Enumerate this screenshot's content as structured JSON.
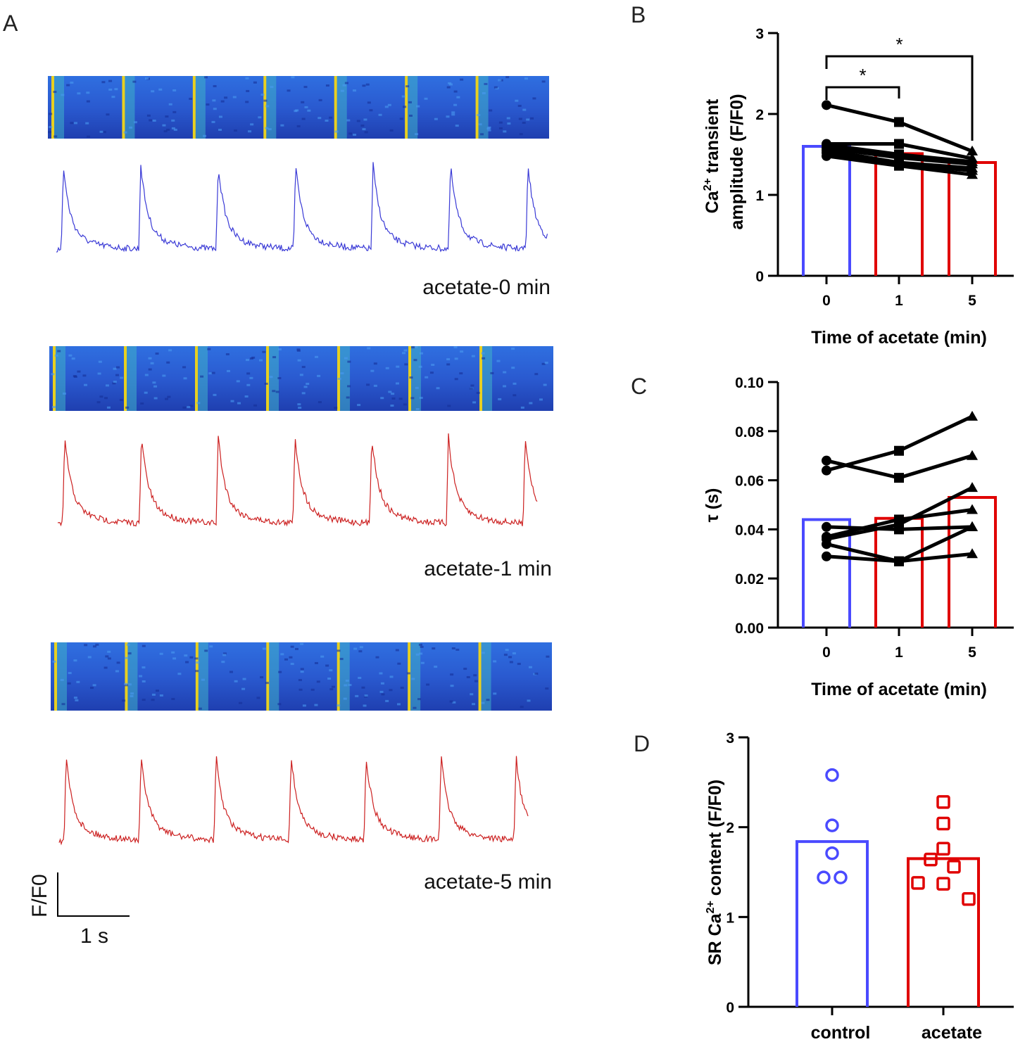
{
  "panel_labels": {
    "a": "A",
    "b": "B",
    "c": "C",
    "d": "D"
  },
  "panel_a": {
    "traces": [
      {
        "label": "acetate-0 min",
        "color": "#3a3ad6",
        "beats": 7
      },
      {
        "label": "acetate-1 min",
        "color": "#cc2020",
        "beats": 7
      },
      {
        "label": "acetate-5 min",
        "color": "#cc2020",
        "beats": 7
      }
    ],
    "scale_bar": {
      "y_label": "F/F0",
      "x_label": "1 s"
    }
  },
  "colors": {
    "control": "#4a4aff",
    "acetate": "#e00000",
    "points": "#000000"
  },
  "chart_data": [
    {
      "id": "B",
      "type": "bar",
      "ylabel_main": "Ca",
      "ylabel_sup": "2+",
      "ylabel_rest": " transient",
      "ylabel_line2": "amplitude (F/F0)",
      "xlabel": "Time of acetate (min)",
      "categories": [
        "0",
        "1",
        "5"
      ],
      "values": [
        1.6,
        1.51,
        1.4
      ],
      "ylim": [
        0,
        3
      ],
      "yticks": [
        "0",
        "1",
        "2",
        "3"
      ],
      "paired_series": [
        [
          2.11,
          1.9,
          1.54
        ],
        [
          1.63,
          1.63,
          1.45
        ],
        [
          1.62,
          1.5,
          1.41
        ],
        [
          1.58,
          1.46,
          1.38
        ],
        [
          1.55,
          1.4,
          1.33
        ],
        [
          1.52,
          1.38,
          1.3
        ],
        [
          1.48,
          1.36,
          1.25
        ]
      ],
      "significance": [
        {
          "from": "0",
          "to": "1",
          "label": "*"
        },
        {
          "from": "0",
          "to": "5",
          "label": "*"
        }
      ]
    },
    {
      "id": "C",
      "type": "bar",
      "ylabel_main": "τ (s)",
      "xlabel": "Time of acetate (min)",
      "categories": [
        "0",
        "1",
        "5"
      ],
      "values": [
        0.044,
        0.0445,
        0.053
      ],
      "ylim": [
        0,
        0.1
      ],
      "yticks": [
        "0.00",
        "0.02",
        "0.04",
        "0.06",
        "0.08",
        "0.10"
      ],
      "paired_series": [
        [
          0.068,
          0.061,
          0.07
        ],
        [
          0.064,
          0.072,
          0.086
        ],
        [
          0.041,
          0.04,
          0.041
        ],
        [
          0.037,
          0.044,
          0.048
        ],
        [
          0.036,
          0.042,
          0.057
        ],
        [
          0.034,
          0.027,
          0.041
        ],
        [
          0.029,
          0.027,
          0.03
        ]
      ]
    },
    {
      "id": "D",
      "type": "bar",
      "ylabel_main": "SR Ca",
      "ylabel_sup": "2+",
      "ylabel_rest": " content (F/F0)",
      "categories": [
        "control",
        "acetate"
      ],
      "values": [
        1.84,
        1.65
      ],
      "ylim": [
        0,
        3
      ],
      "yticks": [
        "0",
        "1",
        "2",
        "3"
      ],
      "points": [
        [
          2.58,
          2.02,
          1.71,
          1.44,
          1.44
        ],
        [
          2.28,
          2.04,
          1.76,
          1.64,
          1.56,
          1.38,
          1.37,
          1.2
        ]
      ]
    }
  ]
}
